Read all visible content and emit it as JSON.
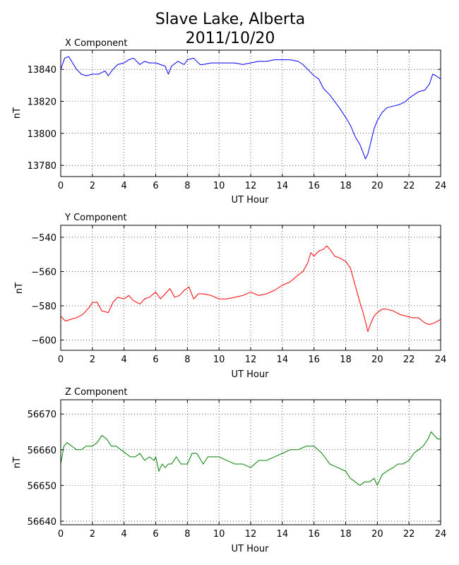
{
  "figure": {
    "title_line1": "Slave Lake, Alberta",
    "title_line2": "2011/10/20"
  },
  "chart_data": [
    {
      "type": "line",
      "title": "X Component",
      "xlabel": "UT Hour",
      "ylabel": "nT",
      "xlim": [
        0,
        24
      ],
      "ylim": [
        13773,
        13852
      ],
      "xticks": [
        0,
        2,
        4,
        6,
        8,
        10,
        12,
        14,
        16,
        18,
        20,
        22,
        24
      ],
      "yticks": [
        13780,
        13800,
        13820,
        13840
      ],
      "grid": true,
      "series": [
        {
          "color": "#0000ff",
          "x": [
            0,
            0.25,
            0.5,
            0.75,
            1.0,
            1.3,
            1.6,
            2.0,
            2.4,
            2.8,
            3.0,
            3.3,
            3.6,
            4.0,
            4.3,
            4.6,
            5.0,
            5.3,
            5.6,
            6.0,
            6.3,
            6.6,
            6.8,
            7.0,
            7.4,
            7.8,
            8.0,
            8.4,
            8.8,
            9.0,
            9.5,
            10.0,
            10.5,
            11.0,
            11.5,
            12.0,
            12.5,
            13.0,
            13.5,
            14.0,
            14.5,
            15.0,
            15.3,
            15.6,
            16.0,
            16.3,
            16.6,
            17.0,
            17.3,
            17.6,
            18.0,
            18.3,
            18.6,
            18.9,
            19.1,
            19.25,
            19.4,
            19.6,
            19.8,
            20.0,
            20.3,
            20.6,
            21.0,
            21.4,
            21.8,
            22.0,
            22.3,
            22.6,
            23.0,
            23.3,
            23.5,
            23.7,
            24.0
          ],
          "y": [
            13840,
            13847,
            13848,
            13844,
            13840,
            13837,
            13836,
            13837,
            13837,
            13839,
            13836,
            13840,
            13843,
            13844,
            13846,
            13847,
            13843,
            13845,
            13844,
            13844,
            13843,
            13842,
            13837,
            13842,
            13845,
            13843,
            13846,
            13847,
            13843,
            13843,
            13844,
            13844,
            13844,
            13844,
            13843,
            13844,
            13845,
            13845,
            13846,
            13846,
            13846,
            13845,
            13843,
            13840,
            13836,
            13834,
            13828,
            13824,
            13820,
            13816,
            13810,
            13805,
            13798,
            13793,
            13788,
            13784,
            13787,
            13795,
            13803,
            13808,
            13813,
            13816,
            13817,
            13818,
            13820,
            13822,
            13824,
            13826,
            13827,
            13831,
            13837,
            13836,
            13834
          ]
        }
      ]
    },
    {
      "type": "line",
      "title": "Y Component",
      "xlabel": "UT Hour",
      "ylabel": "nT",
      "xlim": [
        0,
        24
      ],
      "ylim": [
        -606,
        -533
      ],
      "xticks": [
        0,
        2,
        4,
        6,
        8,
        10,
        12,
        14,
        16,
        18,
        20,
        22,
        24
      ],
      "yticks": [
        -540,
        -560,
        -580,
        -600
      ],
      "grid": true,
      "series": [
        {
          "color": "#ff0000",
          "x": [
            0,
            0.3,
            0.6,
            1.0,
            1.4,
            1.8,
            2.0,
            2.3,
            2.6,
            3.0,
            3.3,
            3.6,
            4.0,
            4.3,
            4.6,
            5.0,
            5.3,
            5.6,
            6.0,
            6.3,
            6.6,
            6.9,
            7.2,
            7.5,
            7.8,
            8.1,
            8.4,
            8.7,
            9.0,
            9.5,
            10.0,
            10.5,
            11.0,
            11.5,
            12.0,
            12.5,
            13.0,
            13.5,
            14.0,
            14.5,
            15.0,
            15.3,
            15.6,
            15.8,
            16.0,
            16.3,
            16.6,
            16.8,
            17.0,
            17.3,
            17.6,
            18.0,
            18.3,
            18.6,
            18.9,
            19.1,
            19.3,
            19.4,
            19.6,
            19.8,
            20.0,
            20.3,
            20.6,
            21.0,
            21.4,
            21.8,
            22.2,
            22.6,
            23.0,
            23.3,
            23.6,
            24.0
          ],
          "y": [
            -586,
            -589,
            -588,
            -587,
            -585,
            -581,
            -578,
            -578,
            -583,
            -584,
            -578,
            -575,
            -576,
            -574,
            -577,
            -579,
            -576,
            -575,
            -572,
            -576,
            -573,
            -570,
            -575,
            -574,
            -571,
            -569,
            -576,
            -573,
            -573,
            -574,
            -576,
            -576,
            -575,
            -574,
            -572,
            -574,
            -573,
            -571,
            -568,
            -566,
            -562,
            -560,
            -555,
            -549,
            -551,
            -548,
            -547,
            -545,
            -547,
            -551,
            -552,
            -554,
            -558,
            -568,
            -578,
            -584,
            -591,
            -595,
            -590,
            -586,
            -584,
            -582,
            -582,
            -583,
            -585,
            -586,
            -587,
            -587,
            -590,
            -591,
            -590,
            -588
          ]
        }
      ]
    },
    {
      "type": "line",
      "title": "Z Component",
      "xlabel": "UT Hour",
      "ylabel": "nT",
      "xlim": [
        0,
        24
      ],
      "ylim": [
        56639,
        56674
      ],
      "xticks": [
        0,
        2,
        4,
        6,
        8,
        10,
        12,
        14,
        16,
        18,
        20,
        22,
        24
      ],
      "yticks": [
        56640,
        56650,
        56660,
        56670
      ],
      "grid": true,
      "series": [
        {
          "color": "#008000",
          "x": [
            0,
            0.2,
            0.4,
            0.7,
            1.0,
            1.3,
            1.6,
            2.0,
            2.3,
            2.6,
            2.9,
            3.2,
            3.5,
            3.8,
            4.1,
            4.4,
            4.7,
            5.0,
            5.3,
            5.6,
            5.9,
            6.0,
            6.2,
            6.4,
            6.6,
            6.8,
            7.0,
            7.3,
            7.6,
            8.0,
            8.3,
            8.6,
            9.0,
            9.3,
            9.6,
            10.0,
            10.5,
            11.0,
            11.5,
            12.0,
            12.5,
            13.0,
            13.5,
            14.0,
            14.5,
            15.0,
            15.5,
            16.0,
            16.5,
            17.0,
            17.5,
            18.0,
            18.3,
            18.6,
            18.9,
            19.2,
            19.5,
            19.8,
            20.0,
            20.3,
            20.6,
            21.0,
            21.3,
            21.6,
            22.0,
            22.3,
            22.6,
            22.9,
            23.2,
            23.4,
            23.6,
            23.8,
            24.0
          ],
          "y": [
            56656,
            56661,
            56662,
            56661,
            56660,
            56660,
            56661,
            56661,
            56662,
            56664,
            56663,
            56661,
            56661,
            56660,
            56659,
            56658,
            56658,
            56659,
            56657,
            56658,
            56657,
            56658,
            56654,
            56656,
            56655,
            56656,
            56656,
            56658,
            56656,
            56656,
            56659,
            56659,
            56656,
            56658,
            56658,
            56658,
            56657,
            56656,
            56656,
            56655,
            56657,
            56657,
            56658,
            56659,
            56660,
            56660,
            56661,
            56661,
            56659,
            56656,
            56655,
            56654,
            56652,
            56651,
            56650,
            56651,
            56651,
            56652,
            56650,
            56653,
            56654,
            56655,
            56656,
            56656,
            56657,
            56659,
            56660,
            56661,
            56663,
            56665,
            56664,
            56663,
            56663
          ]
        }
      ]
    }
  ]
}
